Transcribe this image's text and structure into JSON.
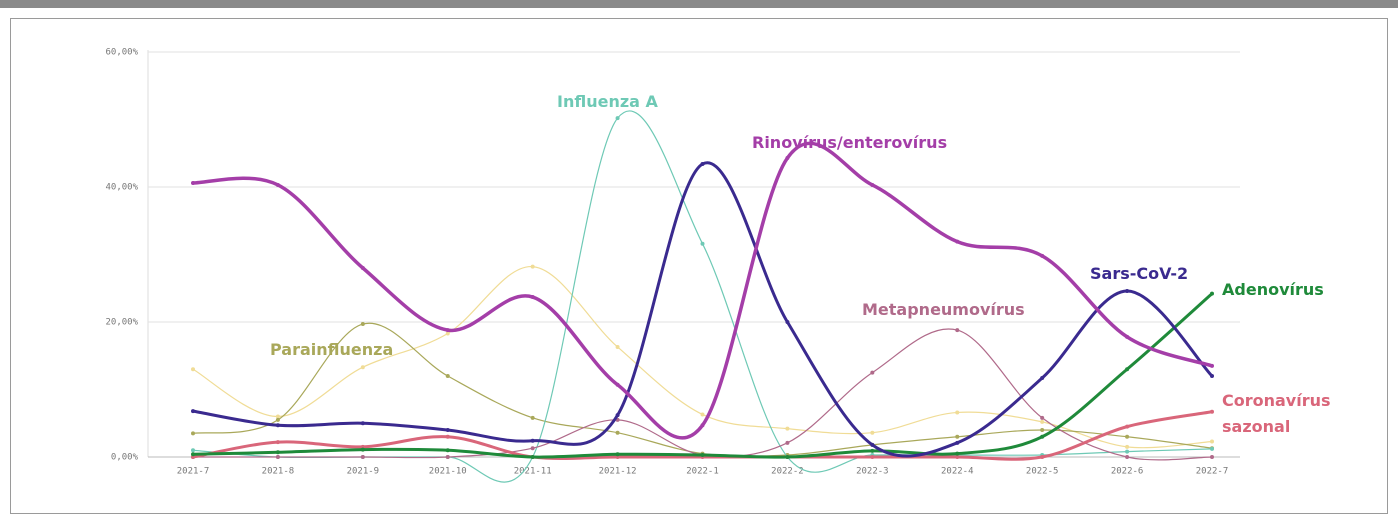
{
  "chart_data": {
    "type": "line",
    "categories": [
      "2021-7",
      "2021-8",
      "2021-9",
      "2021-10",
      "2021-11",
      "2021-12",
      "2022-1",
      "2022-2",
      "2022-3",
      "2022-4",
      "2022-5",
      "2022-6",
      "2022-7"
    ],
    "ylim": [
      0,
      60
    ],
    "yticks": [
      {
        "value": 0,
        "label": "0,00%"
      },
      {
        "value": 20,
        "label": "20,00%"
      },
      {
        "value": 40,
        "label": "40,00%"
      },
      {
        "value": 60,
        "label": "60,00%"
      }
    ],
    "grid": true,
    "series": [
      {
        "color": "#f0dc96",
        "values": [
          13,
          6,
          13.3,
          18.3,
          28.2,
          16.3,
          6.3,
          4.2,
          3.6,
          6.6,
          5.2,
          1.5,
          2.3
        ]
      },
      {
        "name": "Parainfluenza",
        "color": "#a9a85a",
        "values": [
          3.5,
          5.5,
          19.7,
          12,
          5.8,
          3.6,
          0.5,
          0.3,
          1.8,
          3,
          4,
          3,
          1.3
        ]
      },
      {
        "name": "Influenza A",
        "color": "#6ec9b5",
        "values": [
          1,
          0,
          0,
          0,
          0,
          50.2,
          31.6,
          0,
          0.3,
          0.3,
          0.3,
          0.8,
          1.2
        ]
      },
      {
        "name": "Metapneumovírus",
        "color": "#b06a8a",
        "values": [
          0,
          0,
          0,
          0,
          1.3,
          5.5,
          0.3,
          2.1,
          12.5,
          18.8,
          5.8,
          0,
          0
        ]
      },
      {
        "name": "Coronavírus sazonal",
        "color": "#d9667a",
        "values": [
          0,
          2.2,
          1.5,
          3,
          0,
          0,
          0,
          0,
          0,
          0,
          0,
          4.5,
          6.7
        ]
      },
      {
        "name": "Adenovírus",
        "color": "#1f8a3a",
        "values": [
          0.4,
          0.7,
          1.1,
          1,
          0,
          0.4,
          0.3,
          0,
          0.9,
          0.5,
          3,
          13,
          24.2
        ]
      },
      {
        "name": "Sars-CoV-2",
        "color": "#3a2a8f",
        "values": [
          6.8,
          4.7,
          5,
          4,
          2.4,
          6.2,
          43.4,
          20,
          1.8,
          2.1,
          11.7,
          24.6,
          12
        ]
      },
      {
        "name": "Rinovírus/enterovírus",
        "color": "#a43ea8",
        "values": [
          40.6,
          40.3,
          28,
          18.8,
          23.7,
          10.7,
          4.7,
          44.3,
          40.3,
          31.9,
          29.8,
          17.8,
          13.5
        ]
      }
    ]
  }
}
